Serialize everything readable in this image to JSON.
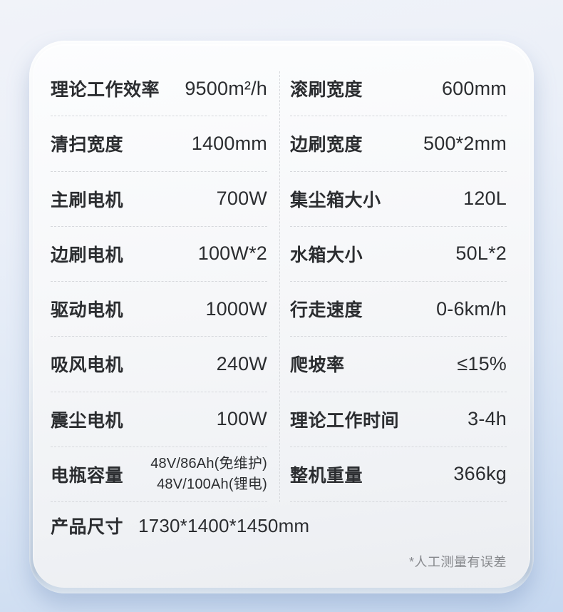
{
  "card": {
    "rows": [
      {
        "left": {
          "label": "理论工作效率",
          "value": "9500m²/h"
        },
        "right": {
          "label": "滚刷宽度",
          "value": "600mm"
        }
      },
      {
        "left": {
          "label": "清扫宽度",
          "value": "1400mm"
        },
        "right": {
          "label": "边刷宽度",
          "value": "500*2mm"
        }
      },
      {
        "left": {
          "label": "主刷电机",
          "value": "700W"
        },
        "right": {
          "label": "集尘箱大小",
          "value": "120L"
        }
      },
      {
        "left": {
          "label": "边刷电机",
          "value": "100W*2"
        },
        "right": {
          "label": "水箱大小",
          "value": "50L*2"
        }
      },
      {
        "left": {
          "label": "驱动电机",
          "value": "1000W"
        },
        "right": {
          "label": "行走速度",
          "value": "0-6km/h"
        }
      },
      {
        "left": {
          "label": "吸风电机",
          "value": "240W"
        },
        "right": {
          "label": "爬坡率",
          "value": "≤15%"
        }
      },
      {
        "left": {
          "label": "震尘电机",
          "value": "100W"
        },
        "right": {
          "label": "理论工作时间",
          "value": "3-4h"
        }
      },
      {
        "left": {
          "label": "电瓶容量",
          "value_lines": [
            "48V/86Ah(免维护)",
            "48V/100Ah(锂电)"
          ]
        },
        "right": {
          "label": "整机重量",
          "value": "366kg"
        }
      }
    ],
    "footer": {
      "dimensions_label": "产品尺寸",
      "dimensions_value": "1730*1400*1450mm",
      "note": "*人工测量有误差"
    },
    "colors": {
      "background_top": "#f1f3f9",
      "background_bottom": "#c6d8f0",
      "card_surface": "#f6f7f9",
      "text": "#2b2d30",
      "note_text": "#87898d",
      "divider": "#d6d8dc"
    }
  }
}
